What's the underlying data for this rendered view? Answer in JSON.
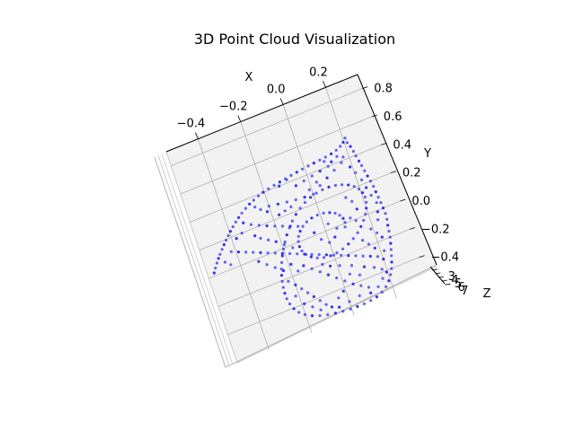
{
  "chart_data": {
    "type": "scatter",
    "projection": "3d",
    "title": "3D Point Cloud Visualization",
    "xlabel": "X",
    "ylabel": "Y",
    "zlabel": "Z",
    "x_ticks": [
      "−0.4",
      "−0.2",
      "0.0",
      "0.2"
    ],
    "y_ticks": [
      "0.8",
      "0.6",
      "0.4",
      "0.2",
      "0.0",
      "−0.2",
      "−0.4"
    ],
    "z_ticks": [
      "3",
      "4",
      "5",
      "6",
      "7"
    ],
    "xlim": [
      -0.55,
      0.35
    ],
    "ylim": [
      -0.6,
      0.9
    ],
    "zlim": [
      2.8,
      7.2
    ],
    "grid": true,
    "point_color": "#3333ee",
    "pane_color": "#f2f2f2",
    "grid_color": "#b0b0b0",
    "points": [
      [
        -0.52,
        0.02
      ],
      [
        -0.508,
        0.048
      ],
      [
        -0.495,
        0.075
      ],
      [
        -0.482,
        0.1
      ],
      [
        -0.47,
        0.122
      ],
      [
        -0.455,
        0.148
      ],
      [
        -0.44,
        0.172
      ],
      [
        -0.425,
        0.195
      ],
      [
        -0.41,
        0.218
      ],
      [
        -0.395,
        0.24
      ],
      [
        -0.378,
        0.262
      ],
      [
        -0.36,
        0.285
      ],
      [
        -0.342,
        0.305
      ],
      [
        -0.322,
        0.325
      ],
      [
        -0.3,
        0.345
      ],
      [
        -0.278,
        0.362
      ],
      [
        -0.255,
        0.376
      ],
      [
        -0.23,
        0.39
      ],
      [
        -0.205,
        0.402
      ],
      [
        -0.178,
        0.41
      ],
      [
        -0.15,
        0.418
      ],
      [
        -0.122,
        0.424
      ],
      [
        -0.094,
        0.43
      ],
      [
        -0.066,
        0.436
      ],
      [
        -0.038,
        0.442
      ],
      [
        -0.01,
        0.448
      ],
      [
        0.018,
        0.452
      ],
      [
        0.046,
        0.456
      ],
      [
        0.074,
        0.46
      ],
      [
        0.102,
        0.464
      ],
      [
        0.13,
        0.47
      ],
      [
        0.156,
        0.48
      ],
      [
        0.178,
        0.494
      ],
      [
        0.196,
        0.512
      ],
      [
        0.21,
        0.534
      ],
      [
        0.212,
        0.5
      ],
      [
        0.22,
        0.468
      ],
      [
        0.226,
        0.43
      ],
      [
        0.23,
        0.395
      ],
      [
        0.235,
        0.355
      ],
      [
        0.24,
        0.32
      ],
      [
        0.245,
        0.28
      ],
      [
        0.25,
        0.24
      ],
      [
        0.255,
        0.2
      ],
      [
        0.26,
        0.16
      ],
      [
        0.262,
        0.12
      ],
      [
        0.265,
        0.08
      ],
      [
        0.268,
        0.04
      ],
      [
        0.27,
        0.0
      ],
      [
        0.272,
        -0.04
      ],
      [
        0.27,
        -0.08
      ],
      [
        0.265,
        -0.12
      ],
      [
        0.262,
        -0.16
      ],
      [
        0.258,
        -0.2
      ],
      [
        0.252,
        -0.24
      ],
      [
        0.245,
        -0.28
      ],
      [
        0.238,
        -0.32
      ],
      [
        0.23,
        -0.36
      ],
      [
        0.22,
        -0.4
      ],
      [
        0.208,
        -0.436
      ],
      [
        0.192,
        -0.47
      ],
      [
        0.172,
        -0.5
      ],
      [
        0.148,
        -0.524
      ],
      [
        0.12,
        -0.54
      ],
      [
        0.09,
        -0.548
      ],
      [
        0.058,
        -0.552
      ],
      [
        0.026,
        -0.552
      ],
      [
        -0.006,
        -0.55
      ],
      [
        -0.04,
        -0.545
      ],
      [
        -0.074,
        -0.538
      ],
      [
        -0.108,
        -0.528
      ],
      [
        -0.142,
        -0.514
      ],
      [
        -0.174,
        -0.495
      ],
      [
        -0.202,
        -0.47
      ],
      [
        -0.224,
        -0.44
      ],
      [
        -0.24,
        -0.405
      ],
      [
        -0.25,
        -0.365
      ],
      [
        -0.255,
        -0.325
      ],
      [
        -0.256,
        -0.285
      ],
      [
        -0.254,
        -0.245
      ],
      [
        -0.25,
        -0.205
      ],
      [
        -0.244,
        -0.165
      ],
      [
        -0.236,
        -0.125
      ],
      [
        -0.226,
        -0.085
      ],
      [
        -0.214,
        -0.045
      ],
      [
        -0.2,
        -0.005
      ],
      [
        -0.184,
        0.035
      ],
      [
        -0.166,
        0.075
      ],
      [
        -0.146,
        0.112
      ],
      [
        -0.124,
        0.148
      ],
      [
        -0.1,
        0.18
      ],
      [
        -0.074,
        0.208
      ],
      [
        -0.046,
        0.232
      ],
      [
        -0.016,
        0.25
      ],
      [
        0.014,
        0.262
      ],
      [
        0.044,
        0.268
      ],
      [
        0.074,
        0.268
      ],
      [
        0.104,
        0.262
      ],
      [
        0.132,
        0.25
      ],
      [
        0.158,
        0.232
      ],
      [
        0.18,
        0.208
      ],
      [
        0.196,
        0.18
      ],
      [
        0.206,
        0.148
      ],
      [
        0.21,
        0.114
      ],
      [
        0.208,
        0.078
      ],
      [
        0.2,
        0.042
      ],
      [
        0.188,
        0.006
      ],
      [
        0.172,
        -0.028
      ],
      [
        0.152,
        -0.06
      ],
      [
        0.13,
        -0.09
      ],
      [
        0.104,
        -0.116
      ],
      [
        0.076,
        -0.138
      ],
      [
        0.046,
        -0.154
      ],
      [
        0.016,
        -0.164
      ],
      [
        -0.014,
        -0.166
      ],
      [
        -0.044,
        -0.16
      ],
      [
        -0.072,
        -0.146
      ],
      [
        -0.096,
        -0.124
      ],
      [
        -0.114,
        -0.096
      ],
      [
        -0.126,
        -0.064
      ],
      [
        -0.13,
        -0.03
      ],
      [
        -0.128,
        0.004
      ],
      [
        -0.12,
        0.036
      ],
      [
        -0.106,
        0.064
      ],
      [
        -0.088,
        0.088
      ],
      [
        -0.066,
        0.106
      ],
      [
        -0.04,
        0.118
      ],
      [
        -0.012,
        0.122
      ],
      [
        0.016,
        0.118
      ],
      [
        0.042,
        0.106
      ],
      [
        0.064,
        0.088
      ],
      [
        0.08,
        0.064
      ],
      [
        0.09,
        0.036
      ],
      [
        0.092,
        0.006
      ],
      [
        0.086,
        -0.022
      ],
      [
        -0.33,
        0.26
      ],
      [
        -0.3,
        0.23
      ],
      [
        -0.268,
        0.205
      ],
      [
        -0.236,
        0.182
      ],
      [
        -0.204,
        0.16
      ],
      [
        -0.172,
        0.14
      ],
      [
        -0.14,
        0.12
      ],
      [
        -0.108,
        0.1
      ],
      [
        -0.42,
        0.11
      ],
      [
        -0.39,
        0.09
      ],
      [
        -0.36,
        0.07
      ],
      [
        -0.33,
        0.05
      ],
      [
        -0.3,
        0.03
      ],
      [
        -0.27,
        0.01
      ],
      [
        -0.24,
        -0.01
      ],
      [
        -0.21,
        -0.03
      ],
      [
        -0.18,
        -0.05
      ],
      [
        -0.15,
        -0.07
      ],
      [
        -0.12,
        -0.09
      ],
      [
        -0.09,
        -0.11
      ],
      [
        -0.06,
        -0.13
      ],
      [
        -0.03,
        -0.15
      ],
      [
        0.0,
        -0.17
      ],
      [
        0.03,
        -0.19
      ],
      [
        0.06,
        -0.21
      ],
      [
        0.09,
        -0.23
      ],
      [
        0.12,
        -0.25
      ],
      [
        0.15,
        -0.27
      ],
      [
        0.18,
        -0.29
      ],
      [
        -0.2,
        0.3
      ],
      [
        -0.16,
        0.29
      ],
      [
        -0.12,
        0.28
      ],
      [
        -0.08,
        0.272
      ],
      [
        -0.04,
        0.266
      ],
      [
        0.0,
        0.262
      ],
      [
        0.04,
        0.3
      ],
      [
        0.08,
        0.33
      ],
      [
        0.12,
        0.36
      ],
      [
        0.16,
        0.39
      ],
      [
        -0.06,
        0.36
      ],
      [
        -0.02,
        0.37
      ],
      [
        0.02,
        0.38
      ],
      [
        0.06,
        0.39
      ],
      [
        0.1,
        0.4
      ],
      [
        -0.25,
        0.09
      ],
      [
        -0.22,
        0.06
      ],
      [
        -0.19,
        0.02
      ],
      [
        -0.16,
        -0.02
      ],
      [
        -0.14,
        -0.16
      ],
      [
        -0.11,
        -0.2
      ],
      [
        -0.08,
        -0.24
      ],
      [
        -0.05,
        -0.28
      ],
      [
        -0.02,
        -0.32
      ],
      [
        0.01,
        -0.36
      ],
      [
        0.04,
        -0.4
      ],
      [
        0.07,
        -0.43
      ],
      [
        0.1,
        -0.46
      ],
      [
        -0.2,
        -0.26
      ],
      [
        -0.18,
        -0.3
      ],
      [
        -0.16,
        -0.34
      ],
      [
        -0.14,
        -0.38
      ],
      [
        -0.12,
        -0.42
      ],
      [
        -0.1,
        -0.46
      ],
      [
        -0.08,
        -0.49
      ],
      [
        0.14,
        -0.15
      ],
      [
        0.16,
        -0.19
      ],
      [
        0.18,
        -0.23
      ],
      [
        0.19,
        -0.1
      ],
      [
        0.21,
        -0.14
      ],
      [
        0.225,
        -0.18
      ],
      [
        0.12,
        0.02
      ],
      [
        0.14,
        -0.01
      ],
      [
        0.16,
        0.06
      ],
      [
        0.15,
        0.12
      ],
      [
        0.13,
        0.16
      ],
      [
        -0.17,
        0.22
      ],
      [
        -0.14,
        0.23
      ],
      [
        -0.11,
        0.24
      ],
      [
        -0.3,
        0.15
      ],
      [
        -0.28,
        0.12
      ],
      [
        -0.35,
        0.2
      ],
      [
        -0.38,
        0.18
      ],
      [
        -0.46,
        0.06
      ],
      [
        -0.44,
        0.03
      ],
      [
        -0.05,
        0.02
      ],
      [
        -0.03,
        -0.04
      ],
      [
        0.0,
        -0.08
      ],
      [
        0.03,
        -0.06
      ],
      [
        0.05,
        -0.01
      ],
      [
        0.02,
        0.04
      ],
      [
        -0.19,
        -0.12
      ],
      [
        -0.17,
        -0.18
      ],
      [
        -0.06,
        -0.2
      ],
      [
        -0.03,
        -0.23
      ],
      [
        0.01,
        -0.25
      ],
      [
        0.06,
        -0.28
      ],
      [
        0.11,
        -0.32
      ],
      [
        0.15,
        -0.35
      ],
      [
        0.18,
        -0.38
      ],
      [
        0.2,
        -0.32
      ],
      [
        0.215,
        -0.27
      ],
      [
        0.232,
        -0.06
      ],
      [
        0.242,
        -0.01
      ],
      [
        0.25,
        0.05
      ],
      [
        0.238,
        0.11
      ],
      [
        0.228,
        0.17
      ],
      [
        0.22,
        0.23
      ],
      [
        0.205,
        0.29
      ],
      [
        0.19,
        0.34
      ],
      [
        0.175,
        0.42
      ],
      [
        0.15,
        0.44
      ],
      [
        0.12,
        0.42
      ],
      [
        0.09,
        0.44
      ],
      [
        -0.09,
        0.42
      ],
      [
        -0.13,
        0.4
      ],
      [
        -0.26,
        0.33
      ],
      [
        -0.24,
        0.3
      ],
      [
        -0.215,
        0.27
      ],
      [
        -0.01,
        0.3
      ],
      [
        0.03,
        0.33
      ],
      [
        -0.32,
        -0.02
      ],
      [
        -0.29,
        -0.06
      ],
      [
        -0.26,
        -0.1
      ],
      [
        -0.23,
        -0.14
      ],
      [
        -0.225,
        -0.22
      ],
      [
        -0.215,
        -0.33
      ],
      [
        -0.19,
        -0.4
      ],
      [
        -0.16,
        -0.44
      ],
      [
        -0.13,
        -0.48
      ],
      [
        -0.05,
        -0.51
      ],
      [
        0.0,
        -0.5
      ],
      [
        0.05,
        -0.49
      ],
      [
        0.1,
        -0.5
      ],
      [
        0.14,
        -0.48
      ],
      [
        0.17,
        -0.44
      ],
      [
        0.195,
        -0.41
      ],
      [
        0.08,
        -0.36
      ],
      [
        0.04,
        -0.33
      ],
      [
        -0.01,
        -0.42
      ],
      [
        -0.04,
        -0.45
      ]
    ]
  }
}
